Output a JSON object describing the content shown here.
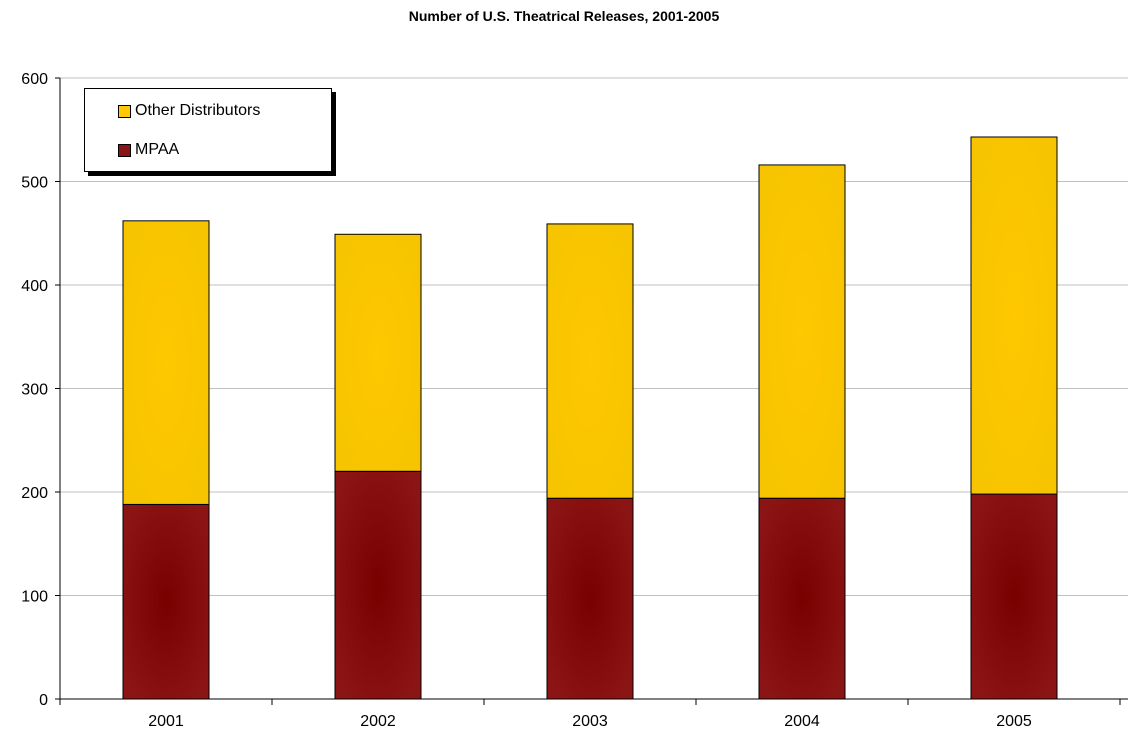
{
  "chart_data": {
    "type": "bar",
    "stacked": true,
    "title": "Number of U.S. Theatrical Releases, 2001-2005",
    "xlabel": "",
    "ylabel": "",
    "categories": [
      "2001",
      "2002",
      "2003",
      "2004",
      "2005"
    ],
    "series": [
      {
        "name": "MPAA",
        "values": [
          188,
          220,
          194,
          194,
          198
        ],
        "color": "#8b1414"
      },
      {
        "name": "Other Distributors",
        "values": [
          274,
          229,
          265,
          322,
          345
        ],
        "color": "#ffc800"
      }
    ],
    "ylim": [
      0,
      600
    ],
    "yticks": [
      "0",
      "100",
      "200",
      "300",
      "400",
      "500",
      "600"
    ],
    "grid": true,
    "legend_position": "top-left"
  },
  "legend": {
    "items": [
      {
        "label": "Other Distributors",
        "color": "#ffc800"
      },
      {
        "label": "MPAA",
        "color": "#8b1414"
      }
    ]
  }
}
